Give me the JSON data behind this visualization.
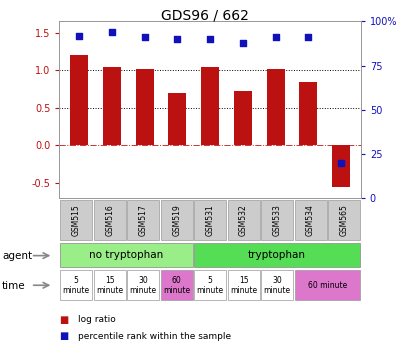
{
  "title": "GDS96 / 662",
  "samples": [
    "GSM515",
    "GSM516",
    "GSM517",
    "GSM519",
    "GSM531",
    "GSM532",
    "GSM533",
    "GSM534",
    "GSM565"
  ],
  "log_ratio": [
    1.2,
    1.05,
    1.02,
    0.7,
    1.05,
    0.73,
    1.02,
    0.85,
    -0.55
  ],
  "percentile_rank": [
    92,
    94,
    91,
    90,
    90,
    88,
    91,
    91,
    20
  ],
  "bar_color": "#bb1111",
  "dot_color": "#1111bb",
  "ylim_left": [
    -0.7,
    1.65
  ],
  "ylim_right": [
    0,
    100
  ],
  "yticks_left": [
    -0.5,
    0.0,
    0.5,
    1.0,
    1.5
  ],
  "yticks_right": [
    0,
    25,
    50,
    75,
    100
  ],
  "ytick_labels_right": [
    "0",
    "25",
    "50",
    "75",
    "100%"
  ],
  "dotted_lines": [
    0.5,
    1.0
  ],
  "agent_green_light": "#99ee88",
  "agent_green_dark": "#55dd55",
  "time_color_white": "#ffffff",
  "time_color_pink": "#dd77cc",
  "legend_red": "#bb1111",
  "legend_blue": "#1111bb",
  "sample_box_color": "#cccccc"
}
